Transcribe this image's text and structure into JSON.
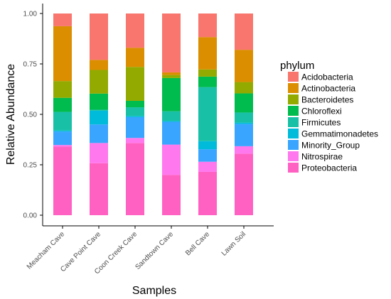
{
  "chart_data": {
    "type": "bar",
    "stacked": true,
    "xlabel": "Samples",
    "ylabel": "Relative Abundance",
    "ylim": [
      0,
      1
    ],
    "yticks": [
      "0.00",
      "0.25",
      "0.50",
      "0.75",
      "1.00"
    ],
    "ytick_values": [
      0,
      0.25,
      0.5,
      0.75,
      1.0
    ],
    "grid": false,
    "legend_title": "phylum",
    "legend_position": "right",
    "categories": [
      "Meacham Cave",
      "Cave Point Cave",
      "Coon Creek Cave",
      "Sandtown Cave",
      "Bell Cave",
      "Lawn Soil"
    ],
    "series": [
      {
        "name": "Proteobacteria",
        "color": "#FF61C3",
        "values": [
          0.34,
          0.258,
          0.358,
          0.2,
          0.215,
          0.305
        ]
      },
      {
        "name": "Nitrospirae",
        "color": "#FF78EE",
        "values": [
          0.008,
          0.1,
          0.025,
          0.15,
          0.05,
          0.037
        ]
      },
      {
        "name": "Minority_Group",
        "color": "#39A5FE",
        "values": [
          0.067,
          0.092,
          0.103,
          0.113,
          0.062,
          0.11
        ]
      },
      {
        "name": "Gemmatimonadetes",
        "color": "#00BBDA",
        "values": [
          0.005,
          0.068,
          0.006,
          0.004,
          0.04,
          0.007
        ]
      },
      {
        "name": "Firmicutes",
        "color": "#18C0A6",
        "values": [
          0.092,
          0.005,
          0.043,
          0.048,
          0.268,
          0.05
        ]
      },
      {
        "name": "Chloroflexi",
        "color": "#00BB4D",
        "values": [
          0.07,
          0.08,
          0.032,
          0.165,
          0.052,
          0.095
        ]
      },
      {
        "name": "Bacteroidetes",
        "color": "#93AA00",
        "values": [
          0.083,
          0.117,
          0.168,
          0.015,
          0.036,
          0.056
        ]
      },
      {
        "name": "Actinobacteria",
        "color": "#DB8E00",
        "values": [
          0.272,
          0.05,
          0.095,
          0.013,
          0.16,
          0.16
        ]
      },
      {
        "name": "Acidobacteria",
        "color": "#F8766D",
        "values": [
          0.063,
          0.23,
          0.17,
          0.292,
          0.117,
          0.18
        ]
      }
    ],
    "legend_order": [
      "Acidobacteria",
      "Actinobacteria",
      "Bacteroidetes",
      "Chloroflexi",
      "Firmicutes",
      "Gemmatimonadetes",
      "Minority_Group",
      "Nitrospirae",
      "Proteobacteria"
    ]
  }
}
